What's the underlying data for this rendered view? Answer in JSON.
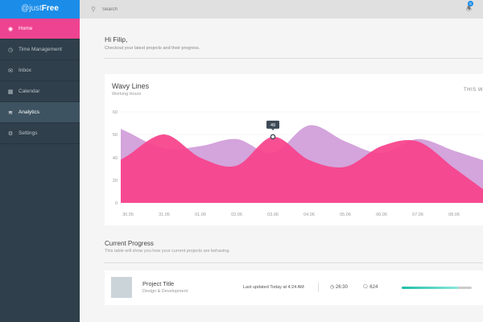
{
  "app": {
    "logo_prefix": "@just",
    "logo_bold": "Free"
  },
  "sidebar": {
    "items": [
      {
        "label": "Home",
        "icon": "dashboard-icon",
        "state": "active"
      },
      {
        "label": "Time Management",
        "icon": "clock-icon"
      },
      {
        "label": "Inbox",
        "icon": "inbox-icon"
      },
      {
        "label": "Calendar",
        "icon": "calendar-icon"
      },
      {
        "label": "Analytics",
        "icon": "analytics-icon",
        "state": "selected"
      },
      {
        "label": "Settings",
        "icon": "gear-icon"
      }
    ]
  },
  "topbar": {
    "search_placeholder": "Search",
    "notification_count": "6"
  },
  "greeting": {
    "title": "Hi Filip,",
    "subtitle": "Checkout your latest projects and their progress."
  },
  "chart_card": {
    "title": "Wavy Lines",
    "subtitle": "Working Hours",
    "period": "THIS W"
  },
  "chart_data": {
    "type": "area",
    "categories": [
      "30.05",
      "31.05",
      "01.06",
      "02.06",
      "03.06",
      "04.06",
      "05.06",
      "06.06",
      "07.06",
      "08.06"
    ],
    "y_ticks": [
      0,
      20,
      40,
      50,
      60
    ],
    "ylim": [
      0,
      60
    ],
    "grid": true,
    "series": [
      {
        "color": "#d4a4dc",
        "values": [
          51,
          44,
          45,
          48,
          42,
          54,
          47,
          42,
          48,
          43
        ]
      },
      {
        "color": "#f7428b",
        "values": [
          41,
          50,
          40,
          33,
          49,
          38,
          32,
          45,
          47,
          31
        ]
      }
    ],
    "tooltip": {
      "category": "03.06",
      "value": "49"
    }
  },
  "progress": {
    "title": "Current Progress",
    "subtitle": "This table will show you how your current projects are behaving.",
    "rows": [
      {
        "title": "Project Title",
        "category": "Design & Development",
        "updated": "Last updated Today at 4:24 AM",
        "time": "26:30",
        "comments": "624",
        "progress": 0.8
      }
    ]
  },
  "colors": {
    "accent_pink": "#ee4390",
    "brand_blue": "#1b8de9",
    "sidebar": "#2f3f4b",
    "progress": "#1fbfa6"
  }
}
